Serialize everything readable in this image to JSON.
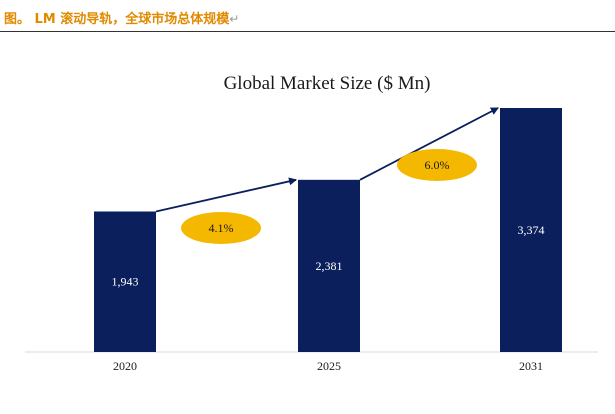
{
  "caption": {
    "text": "图。 LM 滚动导轨，全球市场总体规模",
    "return_mark": "↵"
  },
  "colors": {
    "caption": "#e08a00",
    "bar": "#0a1f5c",
    "bubble": "#f5b800",
    "arrow": "#0a1f5c"
  },
  "chart_data": {
    "type": "bar",
    "title": "Global Market Size ($ Mn)",
    "categories": [
      "2020",
      "2025",
      "2031"
    ],
    "values": [
      1943,
      2381,
      3374
    ],
    "value_labels": [
      "1,943",
      "2,381",
      "3,374"
    ],
    "ylim": [
      0,
      3374
    ],
    "grid": false,
    "legend": "none",
    "annotations": [
      {
        "label": "4.1%",
        "from": "2020",
        "to": "2025"
      },
      {
        "label": "6.0%",
        "from": "2025",
        "to": "2031"
      }
    ]
  }
}
